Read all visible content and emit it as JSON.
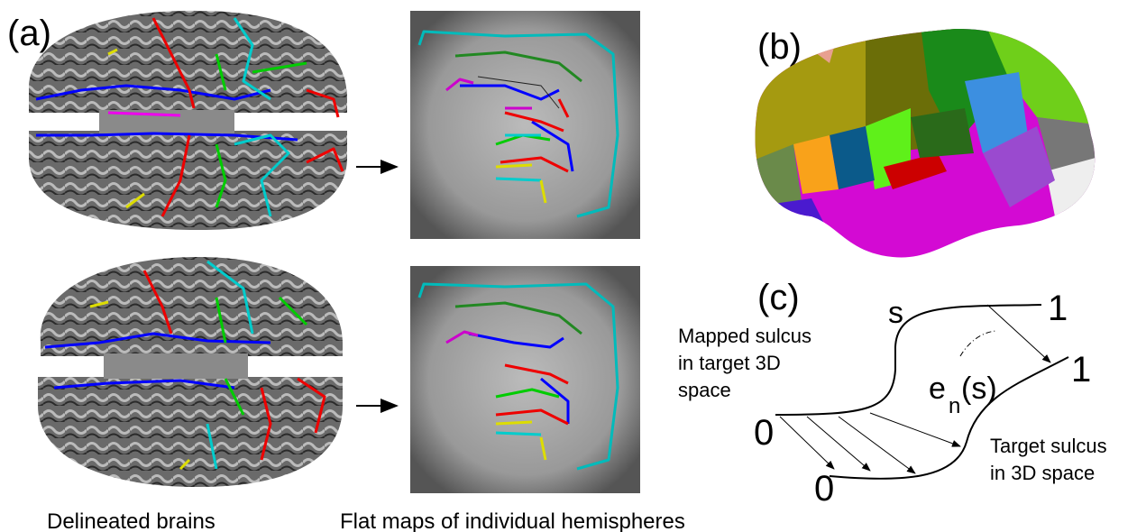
{
  "panels": {
    "a": {
      "label": "(a)",
      "captions": [
        "Delineated brains",
        "Flat maps of individual hemispheres"
      ]
    },
    "b": {
      "label": "(b)"
    },
    "c": {
      "label": "(c)",
      "curve_labels": {
        "s": "s",
        "mapped_end": "1",
        "target_end": "1",
        "mapped_start": "0",
        "target_start": "0"
      },
      "mapped_sulcus": [
        "Mapped sulcus",
        "in target 3D",
        "space"
      ],
      "target_sulcus": [
        "Target sulcus",
        "in 3D space"
      ],
      "displacement": {
        "symbol": "e",
        "subscript": "n",
        "argument": "(s)"
      }
    }
  }
}
